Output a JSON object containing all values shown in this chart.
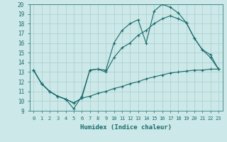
{
  "xlabel": "Humidex (Indice chaleur)",
  "xlim": [
    -0.5,
    23.5
  ],
  "ylim": [
    9,
    20
  ],
  "xticks": [
    0,
    1,
    2,
    3,
    4,
    5,
    6,
    7,
    8,
    9,
    10,
    11,
    12,
    13,
    14,
    15,
    16,
    17,
    18,
    19,
    20,
    21,
    22,
    23
  ],
  "yticks": [
    9,
    10,
    11,
    12,
    13,
    14,
    15,
    16,
    17,
    18,
    19,
    20
  ],
  "bg_color": "#cce8e8",
  "grid_color": "#aacece",
  "line_color": "#1a6b6b",
  "line1_x": [
    0,
    1,
    2,
    3,
    4,
    5,
    6,
    7,
    8,
    9,
    10,
    11,
    12,
    13,
    14,
    15,
    16,
    17,
    18,
    19,
    20,
    21,
    22,
    23
  ],
  "line1_y": [
    13.2,
    11.8,
    11.0,
    10.5,
    10.2,
    9.2,
    10.5,
    13.2,
    13.3,
    13.2,
    16.0,
    17.3,
    18.0,
    18.4,
    16.0,
    19.3,
    20.0,
    19.7,
    19.1,
    18.1,
    16.5,
    15.3,
    14.5,
    13.3
  ],
  "line2_x": [
    0,
    1,
    2,
    3,
    4,
    5,
    6,
    7,
    8,
    9,
    10,
    11,
    12,
    13,
    14,
    15,
    16,
    17,
    18,
    19,
    20,
    21,
    22,
    23
  ],
  "line2_y": [
    13.2,
    11.8,
    11.0,
    10.5,
    10.2,
    9.8,
    10.3,
    13.2,
    13.3,
    13.0,
    14.5,
    15.5,
    16.0,
    16.8,
    17.3,
    18.0,
    18.5,
    18.8,
    18.5,
    18.1,
    16.5,
    15.3,
    14.8,
    13.3
  ],
  "line3_x": [
    0,
    1,
    2,
    3,
    4,
    5,
    6,
    7,
    8,
    9,
    10,
    11,
    12,
    13,
    14,
    15,
    16,
    17,
    18,
    19,
    20,
    21,
    22,
    23
  ],
  "line3_y": [
    13.2,
    11.8,
    11.0,
    10.5,
    10.2,
    9.8,
    10.3,
    10.5,
    10.8,
    11.0,
    11.3,
    11.5,
    11.8,
    12.0,
    12.3,
    12.5,
    12.7,
    12.9,
    13.0,
    13.1,
    13.2,
    13.2,
    13.3,
    13.3
  ]
}
